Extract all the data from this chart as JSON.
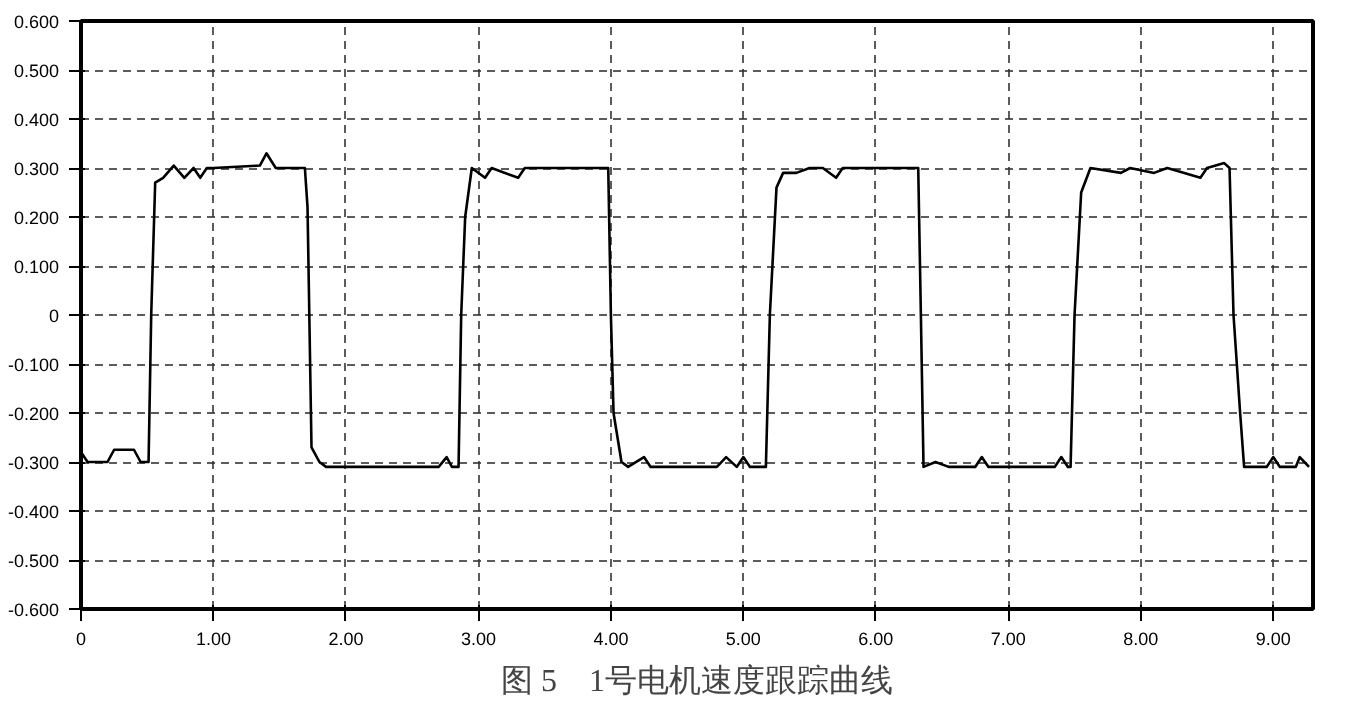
{
  "chart_data": {
    "type": "line",
    "title": "图 5　1号电机速度跟踪曲线",
    "x": [
      0,
      0.05,
      0.2,
      0.25,
      0.4,
      0.45,
      0.51,
      0.53,
      0.56,
      0.62,
      0.7,
      0.78,
      0.85,
      0.9,
      0.95,
      1.0,
      1.35,
      1.4,
      1.47,
      1.69,
      1.71,
      1.74,
      1.8,
      1.85,
      2.7,
      2.76,
      2.8,
      2.85,
      2.87,
      2.9,
      2.95,
      3.05,
      3.1,
      3.3,
      3.35,
      3.98,
      4.0,
      4.02,
      4.08,
      4.13,
      4.25,
      4.3,
      4.8,
      4.87,
      4.95,
      5.0,
      5.05,
      5.17,
      5.2,
      5.25,
      5.3,
      5.4,
      5.5,
      5.6,
      5.7,
      5.75,
      6.32,
      6.34,
      6.36,
      6.45,
      6.55,
      6.75,
      6.8,
      6.85,
      7.0,
      7.35,
      7.4,
      7.45,
      7.47,
      7.5,
      7.55,
      7.62,
      7.85,
      7.92,
      8.1,
      8.2,
      8.45,
      8.5,
      8.63,
      8.67,
      8.7,
      8.75,
      8.78,
      8.95,
      9.0,
      9.05,
      9.17,
      9.2,
      9.27
    ],
    "series": [
      {
        "color": "#000000",
        "values": [
          -0.28,
          -0.3,
          -0.3,
          -0.275,
          -0.275,
          -0.3,
          -0.3,
          0.0,
          0.27,
          0.28,
          0.305,
          0.28,
          0.3,
          0.28,
          0.3,
          0.3,
          0.305,
          0.33,
          0.3,
          0.3,
          0.22,
          -0.27,
          -0.3,
          -0.31,
          -0.31,
          -0.29,
          -0.31,
          -0.31,
          0.0,
          0.2,
          0.3,
          0.28,
          0.3,
          0.28,
          0.3,
          0.3,
          0.0,
          -0.2,
          -0.3,
          -0.31,
          -0.29,
          -0.31,
          -0.31,
          -0.29,
          -0.31,
          -0.29,
          -0.31,
          -0.31,
          0.0,
          0.26,
          0.29,
          0.29,
          0.3,
          0.3,
          0.28,
          0.3,
          0.3,
          0.0,
          -0.31,
          -0.3,
          -0.31,
          -0.31,
          -0.29,
          -0.31,
          -0.31,
          -0.31,
          -0.29,
          -0.31,
          -0.31,
          0.0,
          0.25,
          0.3,
          0.29,
          0.3,
          0.29,
          0.3,
          0.28,
          0.3,
          0.31,
          0.3,
          0.0,
          -0.2,
          -0.31,
          -0.31,
          -0.29,
          -0.31,
          -0.31,
          -0.29,
          -0.31
        ]
      }
    ],
    "xlim": [
      0,
      9.3
    ],
    "ylim": [
      -0.6,
      0.6
    ],
    "xticks": [
      {
        "value": 0,
        "label": "0"
      },
      {
        "value": 1,
        "label": "1.00"
      },
      {
        "value": 2,
        "label": "2.00"
      },
      {
        "value": 3,
        "label": "3.00"
      },
      {
        "value": 4,
        "label": "4.00"
      },
      {
        "value": 5,
        "label": "5.00"
      },
      {
        "value": 6,
        "label": "6.00"
      },
      {
        "value": 7,
        "label": "7.00"
      },
      {
        "value": 8,
        "label": "8.00"
      },
      {
        "value": 9,
        "label": "9.00"
      }
    ],
    "yticks": [
      {
        "value": -0.6,
        "label": "-0.600"
      },
      {
        "value": -0.5,
        "label": "-0.500"
      },
      {
        "value": -0.4,
        "label": "-0.400"
      },
      {
        "value": -0.3,
        "label": "-0.300"
      },
      {
        "value": -0.2,
        "label": "-0.200"
      },
      {
        "value": -0.1,
        "label": "-0.100"
      },
      0,
      {
        "value": 0.1,
        "label": "0.100"
      },
      {
        "value": 0.2,
        "label": "0.200"
      },
      {
        "value": 0.3,
        "label": "0.300"
      },
      {
        "value": 0.4,
        "label": "0.400"
      },
      {
        "value": 0.5,
        "label": "0.500"
      },
      {
        "value": 0.6,
        "label": "0.600"
      }
    ],
    "grid": true,
    "line_style": "solid"
  }
}
